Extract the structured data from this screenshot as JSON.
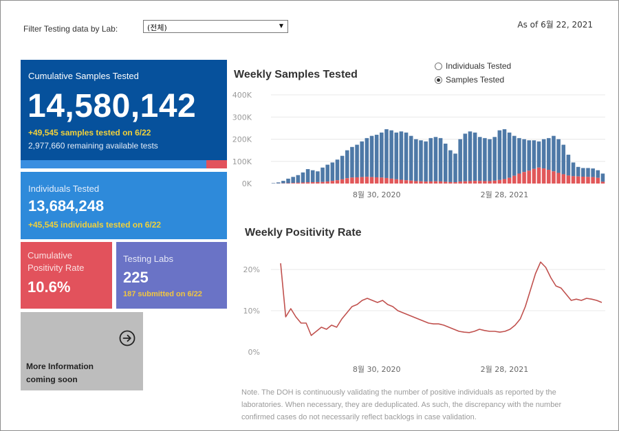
{
  "filter": {
    "label": "Filter Testing data by Lab:",
    "selected": "(전체)"
  },
  "as_of": "As of 6월 22, 2021",
  "kpis": {
    "samples": {
      "title": "Cumulative Samples Tested",
      "value": "14,580,142",
      "added": "+49,545 samples tested on 6/22",
      "remaining": "2,977,660 remaining available tests",
      "progress_fraction": 0.9
    },
    "individuals": {
      "title": "Individuals Tested",
      "value": "13,684,248",
      "added": "+45,545  individuals  tested on 6/22"
    },
    "positivity": {
      "title": "Cumulative Positivity Rate",
      "value": "10.6%"
    },
    "labs": {
      "title": "Testing Labs",
      "value": "225",
      "added": "187 submitted on 6/22"
    }
  },
  "more_info": {
    "line1": "More Information",
    "line2": "coming soon",
    "icon": "arrow-right-circle-icon"
  },
  "toggle": {
    "options": [
      "Individuals Tested",
      "Samples Tested"
    ],
    "selected": 1
  },
  "colors": {
    "samples_blue": "#4e79a7",
    "positive_red": "#e15759",
    "line_red": "#c0504d",
    "kpi_dark_blue": "#06519c",
    "kpi_blue": "#2e8ada",
    "kpi_red": "#e2525c",
    "kpi_purple": "#6a73c6",
    "highlight_yellow": "#f2d13a"
  },
  "chart_data": [
    {
      "type": "bar",
      "title": "Weekly Samples Tested",
      "stacked": true,
      "y_ticks": [
        "0K",
        "100K",
        "200K",
        "300K",
        "400K"
      ],
      "ylim": [
        0,
        400000
      ],
      "x_labels": [
        "8월 30, 2020",
        "2월 28, 2021"
      ],
      "x_label_index": [
        21,
        47
      ],
      "grid": "horizontal",
      "series": [
        {
          "values": [
            2000,
            5000,
            12000,
            22000,
            30000,
            38000,
            50000,
            65000,
            60000,
            55000,
            72000,
            85000,
            95000,
            108000,
            125000,
            150000,
            165000,
            175000,
            190000,
            205000,
            215000,
            220000,
            230000,
            245000,
            240000,
            230000,
            235000,
            230000,
            215000,
            200000,
            195000,
            190000,
            205000,
            210000,
            205000,
            180000,
            150000,
            135000,
            200000,
            225000,
            235000,
            230000,
            210000,
            205000,
            200000,
            210000,
            240000,
            245000,
            230000,
            215000,
            205000,
            200000,
            195000,
            195000,
            190000,
            200000,
            205000,
            215000,
            200000,
            175000,
            130000,
            95000,
            75000,
            70000,
            70000,
            68000,
            60000,
            45000
          ]
        },
        {
          "values": [
            100,
            300,
            800,
            1500,
            2500,
            3500,
            4500,
            5500,
            6000,
            6500,
            7000,
            9000,
            12000,
            15000,
            19000,
            24000,
            27000,
            28000,
            29000,
            30000,
            29000,
            28000,
            27000,
            25000,
            22000,
            19000,
            17000,
            15000,
            13000,
            11000,
            10000,
            9000,
            9500,
            10000,
            9500,
            8000,
            6500,
            6000,
            9000,
            10000,
            11000,
            12000,
            11500,
            11000,
            11000,
            13000,
            16000,
            20000,
            26000,
            35000,
            45000,
            52000,
            58000,
            66000,
            72000,
            68000,
            62000,
            55000,
            48000,
            42000,
            36000,
            33000,
            32000,
            31000,
            30000,
            29000,
            26000,
            8000
          ]
        }
      ]
    },
    {
      "type": "line",
      "title": "Weekly Positivity Rate",
      "y_ticks": [
        "0%",
        "10%",
        "20%"
      ],
      "ylim": [
        0,
        0.25
      ],
      "x_labels": [
        "8월 30, 2020",
        "2월 28, 2021"
      ],
      "x_label_index": [
        21,
        47
      ],
      "grid": "horizontal",
      "values": [
        0.215,
        0.085,
        0.105,
        0.085,
        0.07,
        0.07,
        0.04,
        0.05,
        0.06,
        0.055,
        0.065,
        0.06,
        0.08,
        0.095,
        0.11,
        0.115,
        0.125,
        0.13,
        0.125,
        0.12,
        0.125,
        0.115,
        0.11,
        0.1,
        0.095,
        0.09,
        0.085,
        0.08,
        0.075,
        0.07,
        0.068,
        0.068,
        0.065,
        0.06,
        0.055,
        0.05,
        0.048,
        0.047,
        0.05,
        0.055,
        0.052,
        0.05,
        0.05,
        0.048,
        0.05,
        0.055,
        0.065,
        0.08,
        0.11,
        0.15,
        0.19,
        0.218,
        0.205,
        0.18,
        0.16,
        0.155,
        0.14,
        0.125,
        0.128,
        0.125,
        0.13,
        0.128,
        0.125,
        0.12
      ]
    }
  ],
  "note": {
    "line1": "Note. The DOH is continuously validating the number of positive individuals as reported by the",
    "line2": "laboratories. When necessary, they are deduplicated. As such, the discrepancy with the number",
    "line3": "confirmed cases do not necessarily reflect backlogs in case validation."
  }
}
